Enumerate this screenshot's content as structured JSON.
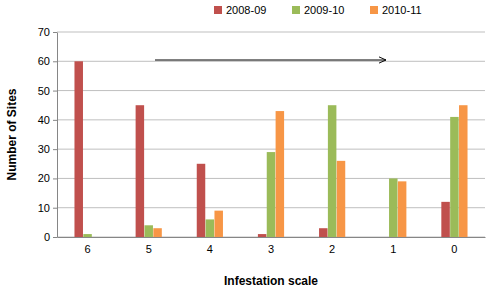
{
  "chart_data": {
    "type": "bar",
    "x_label": "Infestation scale",
    "y_label": "Number of Sites",
    "categories": [
      "6",
      "5",
      "4",
      "3",
      "2",
      "1",
      "0"
    ],
    "series": [
      {
        "name": "2008-09",
        "color": "#c0504d",
        "values": [
          60,
          45,
          25,
          1,
          3,
          0,
          12
        ]
      },
      {
        "name": "2009-10",
        "color": "#9bbb59",
        "values": [
          1,
          4,
          6,
          29,
          45,
          20,
          41
        ]
      },
      {
        "name": "2010-11",
        "color": "#f79646",
        "values": [
          0,
          3,
          9,
          43,
          26,
          19,
          45
        ]
      }
    ],
    "ylim": [
      0,
      70
    ],
    "yticks": [
      0,
      10,
      20,
      30,
      40,
      50,
      60,
      70
    ],
    "grid": true,
    "legend": "top"
  }
}
